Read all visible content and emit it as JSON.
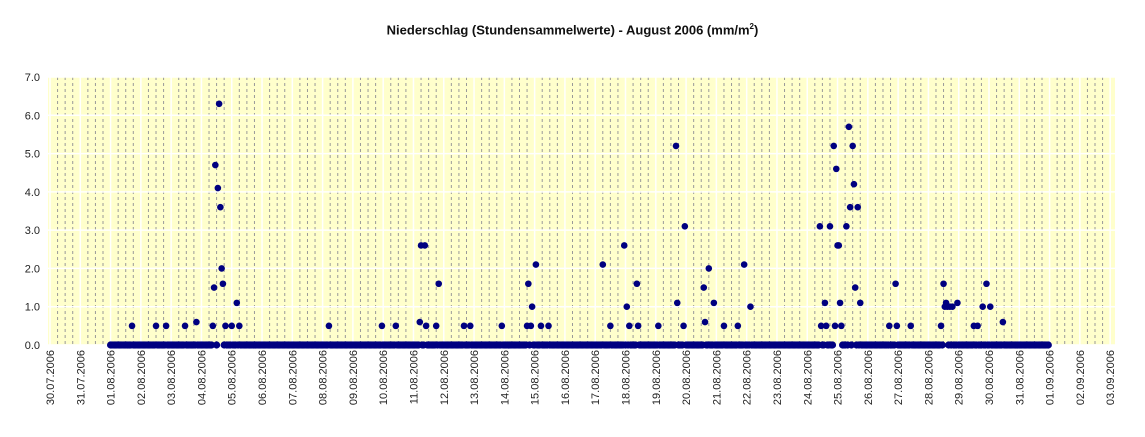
{
  "chart_data": {
    "type": "scatter",
    "title": "Niederschlag (Stundensammelwerte) - August 2006 (mm/m",
    "title_superscript": "2",
    "title_suffix": ")",
    "xlabel": "",
    "ylabel": "",
    "ylim": [
      0,
      7
    ],
    "xlim": [
      "30.07.2006 00:00",
      "03.09.2006 00:00"
    ],
    "y_ticks": [
      "0.0",
      "1.0",
      "2.0",
      "3.0",
      "4.0",
      "5.0",
      "6.0",
      "7.0"
    ],
    "x_ticks": [
      "30.07.2006",
      "31.07.2006",
      "01.08.2006",
      "02.08.2006",
      "03.08.2006",
      "04.08.2006",
      "05.08.2006",
      "06.08.2006",
      "07.08.2006",
      "08.08.2006",
      "09.08.2006",
      "10.08.2006",
      "11.08.2006",
      "12.08.2006",
      "13.08.2006",
      "14.08.2006",
      "15.08.2006",
      "16.08.2006",
      "17.08.2006",
      "18.08.2006",
      "19.08.2006",
      "20.08.2006",
      "21.08.2006",
      "22.08.2006",
      "23.08.2006",
      "24.08.2006",
      "25.08.2006",
      "26.08.2006",
      "27.08.2006",
      "28.08.2006",
      "29.08.2006",
      "30.08.2006",
      "31.08.2006",
      "01.09.2006",
      "02.09.2006",
      "03.09.2006"
    ],
    "grid": {
      "horizontal": true,
      "vertical_daily": true,
      "vertical_6h_dashed": true
    },
    "legend": "none",
    "colors": {
      "marker": "#000080",
      "plot_background": "#FFFFCC",
      "grid_major": "#FFFFFF",
      "grid_minor": "#999999"
    },
    "zero_hours": {
      "from": "01.08.2006 00:00",
      "to": "31.08.2006 23:00",
      "value": 0
    },
    "points": [
      [
        "01.08.2006 17:00",
        0.5
      ],
      [
        "02.08.2006 12:00",
        0.5
      ],
      [
        "02.08.2006 20:00",
        0.5
      ],
      [
        "03.08.2006 11:00",
        0.5
      ],
      [
        "03.08.2006 20:00",
        0.6
      ],
      [
        "04.08.2006 09:00",
        0.5
      ],
      [
        "04.08.2006 10:00",
        1.5
      ],
      [
        "04.08.2006 11:00",
        4.7
      ],
      [
        "04.08.2006 13:00",
        4.1
      ],
      [
        "04.08.2006 14:00",
        6.3
      ],
      [
        "04.08.2006 15:00",
        3.6
      ],
      [
        "04.08.2006 16:00",
        2.0
      ],
      [
        "04.08.2006 17:00",
        1.6
      ],
      [
        "04.08.2006 19:00",
        0.5
      ],
      [
        "05.08.2006 00:00",
        0.5
      ],
      [
        "05.08.2006 04:00",
        1.1
      ],
      [
        "05.08.2006 06:00",
        0.5
      ],
      [
        "08.08.2006 05:00",
        0.5
      ],
      [
        "09.08.2006 23:00",
        0.5
      ],
      [
        "10.08.2006 10:00",
        0.5
      ],
      [
        "11.08.2006 05:00",
        0.6
      ],
      [
        "11.08.2006 06:00",
        2.6
      ],
      [
        "11.08.2006 09:00",
        2.6
      ],
      [
        "11.08.2006 10:00",
        0.5
      ],
      [
        "11.08.2006 18:00",
        0.5
      ],
      [
        "11.08.2006 20:00",
        1.6
      ],
      [
        "12.08.2006 16:00",
        0.5
      ],
      [
        "12.08.2006 21:00",
        0.5
      ],
      [
        "13.08.2006 22:00",
        0.5
      ],
      [
        "14.08.2006 18:00",
        0.5
      ],
      [
        "14.08.2006 19:00",
        1.6
      ],
      [
        "14.08.2006 21:00",
        0.5
      ],
      [
        "14.08.2006 22:00",
        1.0
      ],
      [
        "15.08.2006 01:00",
        2.1
      ],
      [
        "15.08.2006 05:00",
        0.5
      ],
      [
        "15.08.2006 11:00",
        0.5
      ],
      [
        "17.08.2006 06:00",
        2.1
      ],
      [
        "17.08.2006 12:00",
        0.5
      ],
      [
        "17.08.2006 23:00",
        2.6
      ],
      [
        "18.08.2006 01:00",
        1.0
      ],
      [
        "18.08.2006 03:00",
        0.5
      ],
      [
        "18.08.2006 09:00",
        1.6
      ],
      [
        "18.08.2006 10:00",
        0.5
      ],
      [
        "19.08.2006 02:00",
        0.5
      ],
      [
        "19.08.2006 16:00",
        5.2
      ],
      [
        "19.08.2006 17:00",
        1.1
      ],
      [
        "19.08.2006 22:00",
        0.5
      ],
      [
        "19.08.2006 23:00",
        3.1
      ],
      [
        "20.08.2006 14:00",
        1.5
      ],
      [
        "20.08.2006 15:00",
        0.6
      ],
      [
        "20.08.2006 18:00",
        2.0
      ],
      [
        "20.08.2006 22:00",
        1.1
      ],
      [
        "21.08.2006 06:00",
        0.5
      ],
      [
        "21.08.2006 17:00",
        0.5
      ],
      [
        "21.08.2006 22:00",
        2.1
      ],
      [
        "22.08.2006 03:00",
        1.0
      ],
      [
        "24.08.2006 10:00",
        3.1
      ],
      [
        "24.08.2006 11:00",
        0.5
      ],
      [
        "24.08.2006 14:00",
        1.1
      ],
      [
        "24.08.2006 15:00",
        0.5
      ],
      [
        "24.08.2006 18:00",
        3.1
      ],
      [
        "24.08.2006 21:00",
        5.2
      ],
      [
        "24.08.2006 22:00",
        0.5
      ],
      [
        "24.08.2006 23:00",
        4.6
      ],
      [
        "25.08.2006 00:00",
        2.6
      ],
      [
        "25.08.2006 01:00",
        2.6
      ],
      [
        "25.08.2006 02:00",
        1.1
      ],
      [
        "25.08.2006 03:00",
        0.5
      ],
      [
        "25.08.2006 07:00",
        3.1
      ],
      [
        "25.08.2006 09:00",
        5.7
      ],
      [
        "25.08.2006 10:00",
        3.6
      ],
      [
        "25.08.2006 12:00",
        5.2
      ],
      [
        "25.08.2006 13:00",
        4.2
      ],
      [
        "25.08.2006 14:00",
        1.5
      ],
      [
        "25.08.2006 16:00",
        3.6
      ],
      [
        "25.08.2006 18:00",
        1.1
      ],
      [
        "26.08.2006 17:00",
        0.5
      ],
      [
        "26.08.2006 22:00",
        1.6
      ],
      [
        "26.08.2006 23:00",
        0.5
      ],
      [
        "27.08.2006 10:00",
        0.5
      ],
      [
        "28.08.2006 10:00",
        0.5
      ],
      [
        "28.08.2006 12:00",
        1.6
      ],
      [
        "28.08.2006 13:00",
        1.0
      ],
      [
        "28.08.2006 14:00",
        1.1
      ],
      [
        "28.08.2006 15:00",
        1.0
      ],
      [
        "28.08.2006 17:00",
        1.0
      ],
      [
        "28.08.2006 19:00",
        1.0
      ],
      [
        "28.08.2006 23:00",
        1.1
      ],
      [
        "29.08.2006 12:00",
        0.5
      ],
      [
        "29.08.2006 15:00",
        0.5
      ],
      [
        "29.08.2006 19:00",
        1.0
      ],
      [
        "29.08.2006 22:00",
        1.6
      ],
      [
        "30.08.2006 01:00",
        1.0
      ],
      [
        "30.08.2006 11:00",
        0.6
      ]
    ]
  }
}
